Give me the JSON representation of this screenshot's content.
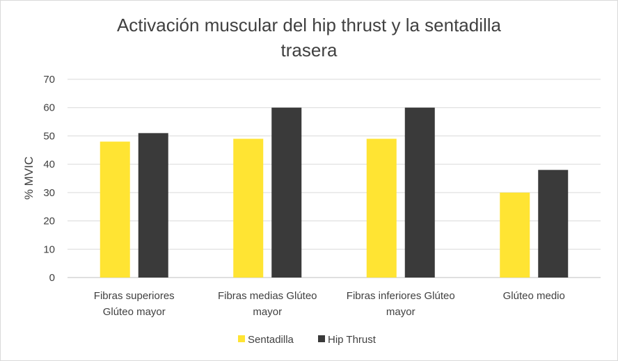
{
  "chart_data": {
    "type": "bar",
    "title_lines": [
      "Activación muscular del hip thrust y la sentadilla",
      "trasera"
    ],
    "ylabel": "% MVIC",
    "xlabel": "",
    "ylim": [
      0,
      70
    ],
    "yticks": [
      0,
      10,
      20,
      30,
      40,
      50,
      60,
      70
    ],
    "grid": true,
    "legend_position": "bottom",
    "categories": [
      [
        "Fibras superiores",
        "Glúteo mayor"
      ],
      [
        "Fibras medias Glúteo",
        "mayor"
      ],
      [
        "Fibras inferiores Glúteo",
        "mayor"
      ],
      [
        "Glúteo medio"
      ]
    ],
    "series": [
      {
        "name": "Sentadilla",
        "color": "#ffe433",
        "values": [
          48,
          49,
          49,
          30
        ]
      },
      {
        "name": "Hip Thrust",
        "color": "#3a3a3a",
        "values": [
          51,
          60,
          60,
          38
        ]
      }
    ]
  }
}
